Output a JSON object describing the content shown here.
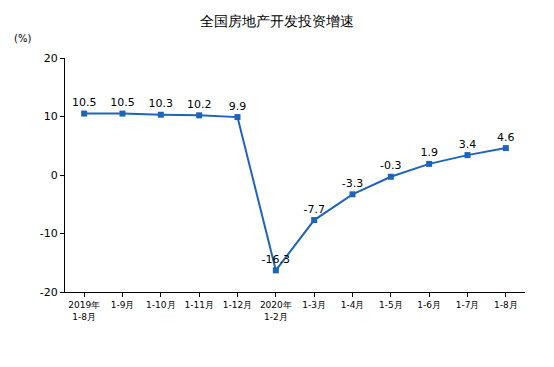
{
  "chart_data": {
    "type": "line",
    "title": "全国房地产开发投资增速",
    "ylabel": "(%)",
    "categories": [
      "2019年\n1-8月",
      "1-9月",
      "1-10月",
      "1-11月",
      "1-12月",
      "2020年\n1-2月",
      "1-3月",
      "1-4月",
      "1-5月",
      "1-6月",
      "1-7月",
      "1-8月"
    ],
    "values": [
      10.5,
      10.5,
      10.3,
      10.2,
      9.9,
      -16.3,
      -7.7,
      -3.3,
      -0.3,
      1.9,
      3.4,
      4.6
    ],
    "color": "#1f64b8",
    "marker": "square",
    "ylim": [
      -20,
      20
    ],
    "yticks": [
      -20,
      -10,
      0,
      10,
      20
    ],
    "grid": false,
    "data_labels": true
  }
}
